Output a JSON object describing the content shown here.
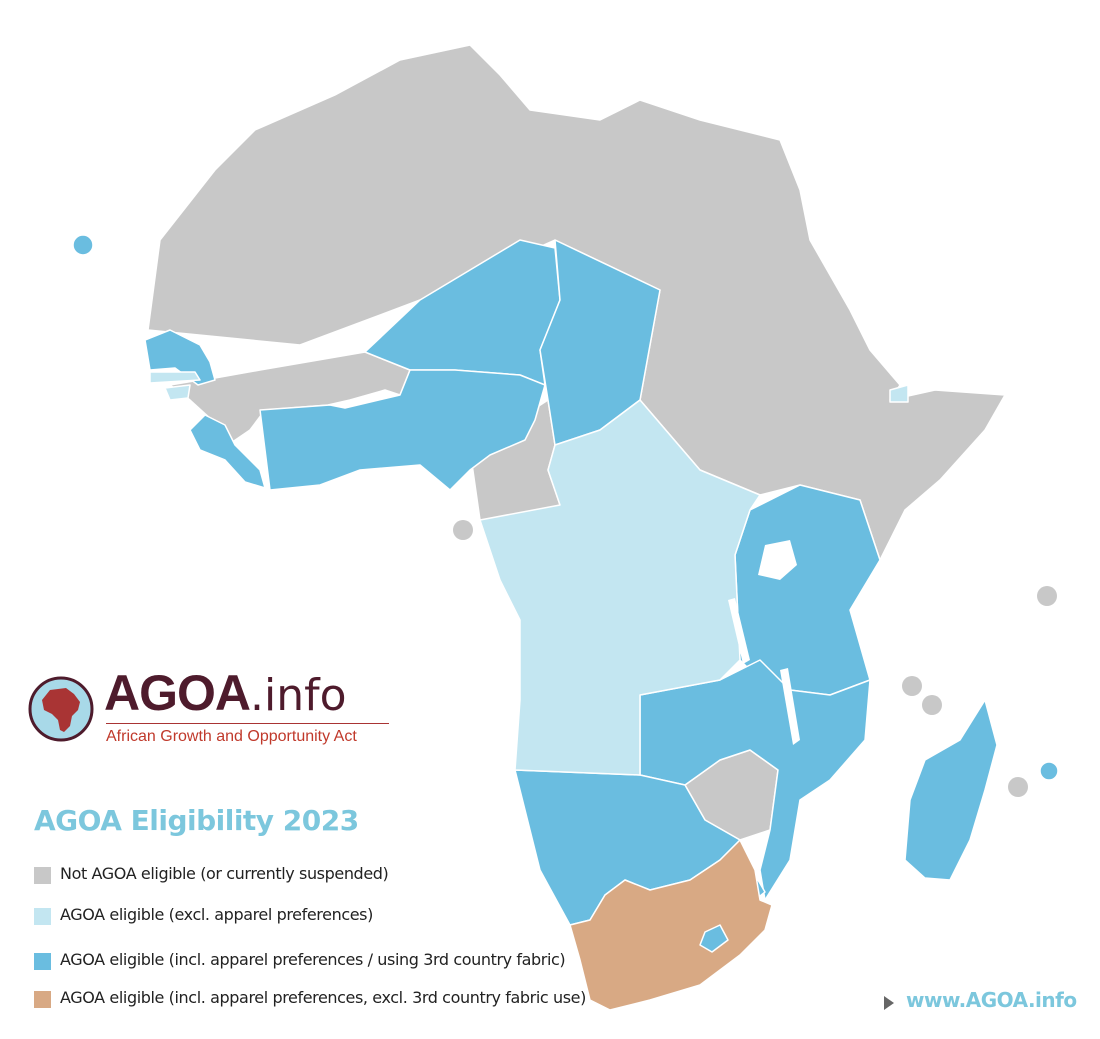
{
  "colors": {
    "not_eligible": "#c8c8c8",
    "eligible_no_apparel": "#c3e6f1",
    "eligible_apparel_3rd_country": "#6abde0",
    "eligible_apparel_no_3rd_country": "#d8a984",
    "border": "#ffffff",
    "brand_dark": "#4e1b2c",
    "brand_red": "#a93434",
    "accent_cyan": "#7cc7dd"
  },
  "logo": {
    "brand_bold": "AGOA",
    "brand_light": ".info",
    "subtitle": "African Growth and Opportunity Act",
    "icon": "africa-globe-icon"
  },
  "legend": {
    "title": "AGOA Eligibility 2023",
    "items": [
      {
        "label": "Not AGOA eligible (or currently suspended)",
        "color": "#c8c8c8"
      },
      {
        "label": "AGOA eligible (excl. apparel preferences)",
        "color": "#c3e6f1"
      },
      {
        "label": "AGOA eligible (incl. apparel preferences / using 3rd country fabric)",
        "color": "#6abde0"
      },
      {
        "label": "AGOA eligible (incl. apparel preferences, excl. 3rd country fabric use)",
        "color": "#d8a984"
      }
    ]
  },
  "website": {
    "label": "www.AGOA.info",
    "icon": "play-arrow-icon"
  }
}
